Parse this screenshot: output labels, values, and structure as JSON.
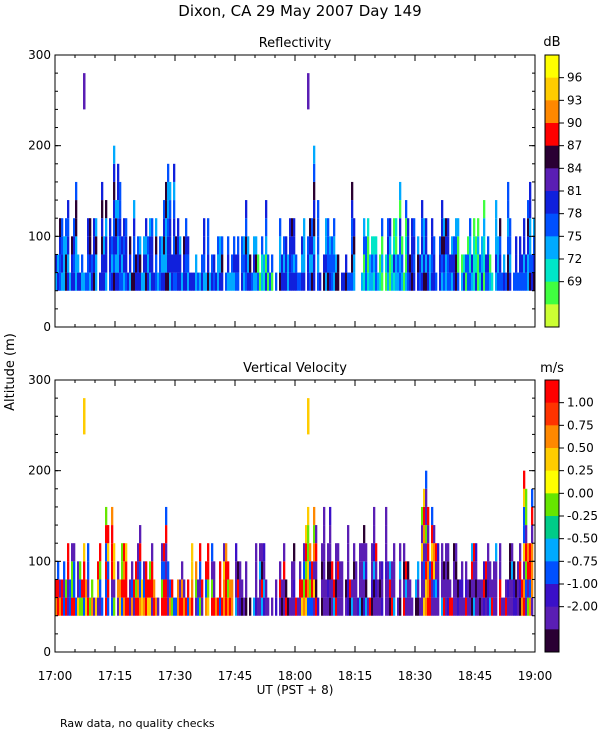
{
  "figure": {
    "title": "Dixon, CA 29 May 2007  Day 149",
    "shared_ylabel": "Altitude (m)",
    "shared_xlabel": "UT  (PST + 8)",
    "footnote": "Raw data, no quality checks"
  },
  "chart_data": [
    {
      "type": "heatmap",
      "title": "Reflectivity",
      "colorbar_label": "dB",
      "colorbar_ticks": [
        "96",
        "93",
        "90",
        "87",
        "84",
        "81",
        "78",
        "75",
        "72",
        "69"
      ],
      "colorbar_colors": [
        "#ffff00",
        "#ffcc00",
        "#ff8800",
        "#ff0000",
        "#2a0033",
        "#5a1eb4",
        "#1020dc",
        "#0050ff",
        "#00aaff",
        "#00e6c8",
        "#40ff40",
        "#ccff33"
      ],
      "x_ticks": [
        "17:00",
        "17:15",
        "17:30",
        "17:45",
        "18:00",
        "18:15",
        "18:30",
        "18:45",
        "19:00"
      ],
      "x_range_minutes": [
        0,
        120
      ],
      "ylim": [
        0,
        300
      ],
      "y_ticks": [
        0,
        100,
        200,
        300
      ],
      "gates_m": [
        40,
        60,
        80,
        100,
        120,
        140,
        160,
        180,
        200
      ]
    },
    {
      "type": "heatmap",
      "title": "Vertical Velocity",
      "colorbar_label": "m/s",
      "colorbar_ticks": [
        "1.00",
        "0.75",
        "0.50",
        "0.25",
        "0.00",
        "-0.25",
        "-0.50",
        "-0.75",
        "-1.00",
        "-2.00"
      ],
      "colorbar_colors": [
        "#ff0000",
        "#ff3300",
        "#ff8800",
        "#ffcc00",
        "#ffff00",
        "#66e600",
        "#00cc88",
        "#00aaff",
        "#0050ff",
        "#3a10c8",
        "#5a1eb4",
        "#2a0033"
      ],
      "x_ticks": [
        "17:00",
        "17:15",
        "17:30",
        "17:45",
        "18:00",
        "18:15",
        "18:30",
        "18:45",
        "19:00"
      ],
      "x_range_minutes": [
        0,
        120
      ],
      "ylim": [
        0,
        300
      ],
      "y_ticks": [
        0,
        100,
        200,
        300
      ],
      "gates_m": [
        40,
        60,
        80,
        100,
        120,
        140,
        160,
        180,
        200
      ]
    }
  ]
}
